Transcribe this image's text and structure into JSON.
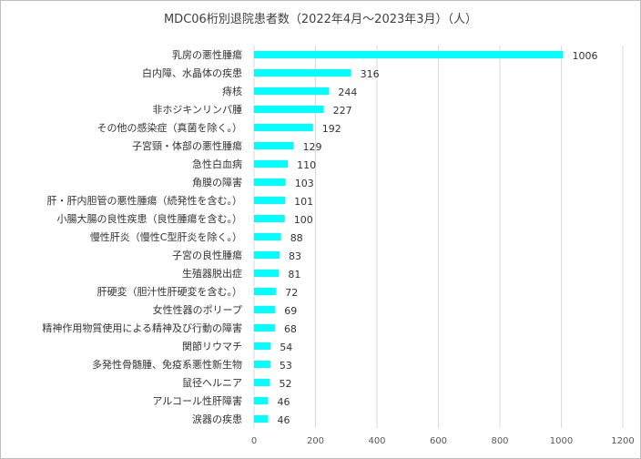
{
  "chart_data": {
    "type": "bar",
    "orientation": "horizontal",
    "title": "MDC06桁別退院患者数（2022年4月～2023年3月）（人）",
    "xlabel": "",
    "ylabel": "",
    "xlim": [
      0,
      1200
    ],
    "xticks": [
      0,
      200,
      400,
      600,
      800,
      1000,
      1200
    ],
    "grid": true,
    "legend": "none",
    "bar_color": "#00FFFF",
    "categories": [
      "乳房の悪性腫瘍",
      "白内障、水晶体の疾患",
      "痔核",
      "非ホジキンリンパ腫",
      "その他の感染症（真菌を除く。）",
      "子宮頸・体部の悪性腫瘍",
      "急性白血病",
      "角膜の障害",
      "肝・肝内胆管の悪性腫瘍（続発性を含む。）",
      "小腸大腸の良性疾患（良性腫瘍を含む。）",
      "慢性肝炎（慢性C型肝炎を除く。）",
      "子宮の良性腫瘍",
      "生殖器脱出症",
      "肝硬変（胆汁性肝硬変を含む。）",
      "女性性器のポリープ",
      "精神作用物質使用による精神及び行動の障害",
      "関節リウマチ",
      "多発性骨髄腫、免疫系悪性新生物",
      "鼠径ヘルニア",
      "アルコール性肝障害",
      "涙器の疾患"
    ],
    "values": [
      1006,
      316,
      244,
      227,
      192,
      129,
      110,
      103,
      101,
      100,
      88,
      83,
      81,
      72,
      69,
      68,
      54,
      53,
      52,
      46,
      46
    ]
  }
}
